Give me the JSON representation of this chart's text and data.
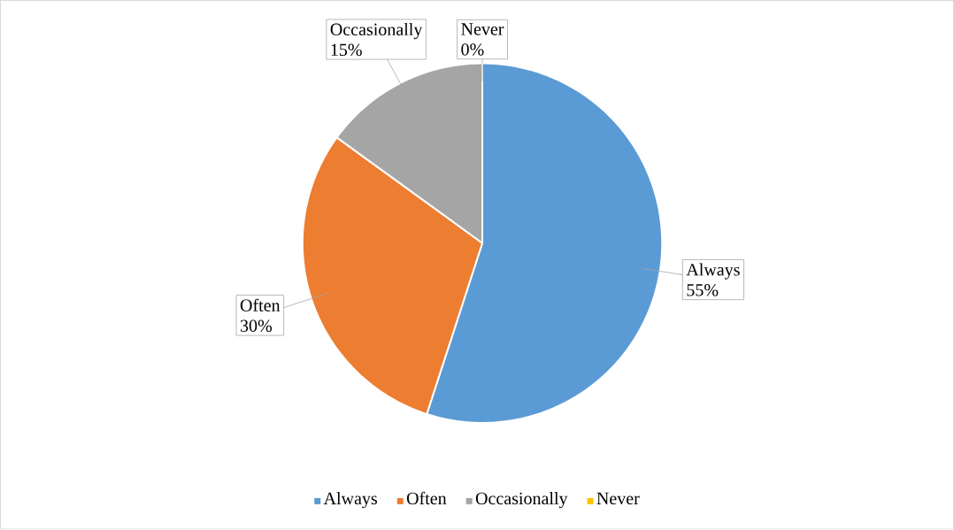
{
  "chart_data": {
    "type": "pie",
    "categories": [
      "Always",
      "Often",
      "Occasionally",
      "Never"
    ],
    "values": [
      55,
      30,
      15,
      0
    ],
    "value_labels": [
      "55%",
      "30%",
      "15%",
      "0%"
    ],
    "colors": [
      "#5b9bd5",
      "#ed7d31",
      "#a5a5a5",
      "#ffc000"
    ],
    "legend": "bottom"
  }
}
